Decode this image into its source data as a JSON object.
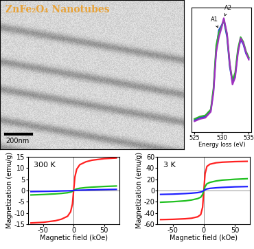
{
  "image": {
    "title": "ZnFe₂O₄ Nanotubes",
    "scale_bar": "200nm"
  },
  "chart_data": [
    {
      "type": "line",
      "xlabel": "Energy loss (eV)",
      "x": [
        525,
        526,
        527,
        528,
        528.5,
        529,
        529.5,
        530,
        530.4,
        531,
        531.5,
        532,
        532.5,
        533,
        533.5,
        534,
        534.5,
        535
      ],
      "series": [
        {
          "color": "#2040e0",
          "values": [
            0.1,
            0.12,
            0.13,
            0.18,
            0.35,
            0.7,
            0.86,
            0.9,
            0.94,
            0.8,
            0.55,
            0.42,
            0.48,
            0.68,
            0.78,
            0.74,
            0.66,
            0.62
          ]
        },
        {
          "color": "#30b030",
          "values": [
            0.11,
            0.13,
            0.14,
            0.19,
            0.37,
            0.73,
            0.84,
            0.89,
            0.95,
            0.82,
            0.57,
            0.44,
            0.5,
            0.7,
            0.8,
            0.76,
            0.68,
            0.63
          ]
        },
        {
          "color": "#a030c0",
          "values": [
            0.09,
            0.11,
            0.12,
            0.17,
            0.33,
            0.67,
            0.8,
            0.88,
            0.96,
            0.83,
            0.58,
            0.4,
            0.46,
            0.66,
            0.79,
            0.75,
            0.67,
            0.61
          ]
        }
      ],
      "xlim": [
        524.5,
        535.5
      ],
      "xticks": [
        525,
        530,
        535
      ],
      "ylim": [
        0,
        1.05
      ],
      "yticks": [],
      "tick_labels": "x",
      "annotations": [
        {
          "text": "A1",
          "x": 529.5,
          "y": 0.86
        },
        {
          "text": "A2",
          "x": 530.4,
          "y": 0.96
        }
      ]
    },
    {
      "type": "line",
      "xlabel": "Magnetic field (kOe)",
      "ylabel": "Magnetization (emu/g)",
      "annotations": [
        {
          "text": "300 K"
        }
      ],
      "x": [
        -70,
        -50,
        -30,
        -20,
        -10,
        -5,
        -2,
        0,
        2,
        5,
        10,
        20,
        30,
        50,
        70
      ],
      "series": [
        {
          "color": "#ff2020",
          "values": [
            -14.5,
            -14.2,
            -13.5,
            -12.8,
            -11.5,
            -9.5,
            -6,
            0,
            6,
            9.5,
            11.5,
            12.8,
            13.5,
            14.2,
            14.5
          ]
        },
        {
          "color": "#20c020",
          "values": [
            -2,
            -1.8,
            -1.5,
            -1.3,
            -1.0,
            -0.7,
            -0.4,
            0,
            0.4,
            0.7,
            1.0,
            1.3,
            1.5,
            1.8,
            2
          ]
        },
        {
          "color": "#2020ff",
          "values": [
            -0.5,
            -0.4,
            -0.3,
            -0.2,
            -0.15,
            -0.1,
            -0.05,
            0,
            0.05,
            0.1,
            0.15,
            0.2,
            0.3,
            0.4,
            0.5
          ]
        }
      ],
      "xlim": [
        -75,
        75
      ],
      "xticks": [
        -50,
        0,
        50
      ],
      "ylim": [
        -15,
        15
      ],
      "yticks": [
        -15,
        -10,
        -5,
        0,
        5,
        10,
        15
      ]
    },
    {
      "type": "line",
      "xlabel": "Magnetic field (kOe)",
      "ylabel": "Magnetization (emu/g)",
      "annotations": [
        {
          "text": "3 K"
        }
      ],
      "x": [
        -70,
        -50,
        -30,
        -20,
        -10,
        -5,
        -2,
        0,
        2,
        5,
        10,
        20,
        30,
        50,
        70
      ],
      "series": [
        {
          "color": "#ff2020",
          "values": [
            -52,
            -51.5,
            -50.5,
            -49.5,
            -47,
            -43,
            -30,
            0,
            30,
            43,
            47,
            49.5,
            50.5,
            51.5,
            52
          ]
        },
        {
          "color": "#20c020",
          "values": [
            -21,
            -20,
            -18.5,
            -17,
            -14.5,
            -12,
            -7,
            0,
            7,
            12,
            14.5,
            17,
            18.5,
            20,
            21
          ]
        },
        {
          "color": "#2020ff",
          "values": [
            -7,
            -6.5,
            -5.5,
            -4.8,
            -3.8,
            -2.8,
            -1.5,
            0,
            1.5,
            2.8,
            3.8,
            4.8,
            5.5,
            6.5,
            7
          ]
        }
      ],
      "xlim": [
        -75,
        75
      ],
      "xticks": [
        -50,
        0,
        50
      ],
      "ylim": [
        -60,
        60
      ],
      "yticks": [
        -60,
        -40,
        -20,
        0,
        20,
        40,
        60
      ]
    }
  ]
}
